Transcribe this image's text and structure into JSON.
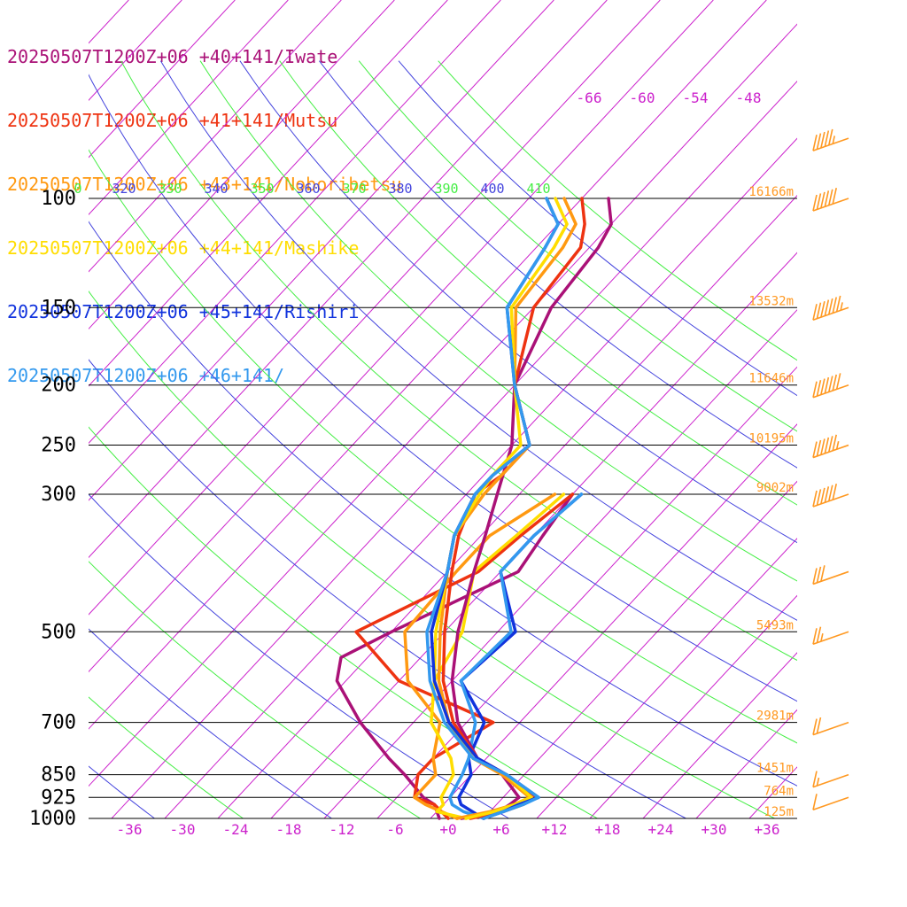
{
  "chart_data": {
    "type": "line",
    "title": "",
    "xlabel": "",
    "ylabel": "",
    "skew_t": true,
    "pressure_axis": "log",
    "xlim": [
      -40,
      39
    ],
    "ylim": [
      1000,
      100
    ],
    "x_ticks": [
      -36,
      -30,
      -24,
      -18,
      -12,
      -6,
      0,
      6,
      12,
      18,
      24,
      30,
      36
    ],
    "x_tick_labels": [
      "-36",
      "-30",
      "-24",
      "-18",
      "-12",
      "-6",
      "+0",
      "+6",
      "+12",
      "+18",
      "+24",
      "+30",
      "+36"
    ],
    "pressure_levels": [
      100,
      150,
      200,
      250,
      300,
      500,
      700,
      850,
      925,
      1000
    ],
    "pressure_labels": [
      "100",
      "150",
      "200",
      "250",
      "300",
      "500",
      "700",
      "850",
      "925",
      "1000"
    ],
    "height_labels": [
      {
        "p": 100,
        "text": "16166m"
      },
      {
        "p": 150,
        "text": "13532m"
      },
      {
        "p": 200,
        "text": "11646m"
      },
      {
        "p": 250,
        "text": "10195m"
      },
      {
        "p": 300,
        "text": "9002m"
      },
      {
        "p": 500,
        "text": "5493m"
      },
      {
        "p": 700,
        "text": "2981m"
      },
      {
        "p": 850,
        "text": "1451m"
      },
      {
        "p": 925,
        "text": "764m"
      },
      {
        "p": 1000,
        "text": "125m"
      }
    ],
    "theta_labels": [
      {
        "text": "0",
        "color": "#44ee44"
      },
      {
        "text": "320",
        "color": "#4444dd"
      },
      {
        "text": "330",
        "color": "#44ee44"
      },
      {
        "text": "340",
        "color": "#4444dd"
      },
      {
        "text": "350",
        "color": "#44ee44"
      },
      {
        "text": "360",
        "color": "#4444dd"
      },
      {
        "text": "370",
        "color": "#44ee44"
      },
      {
        "text": "380",
        "color": "#4444dd"
      },
      {
        "text": "390",
        "color": "#44ee44"
      },
      {
        "text": "400",
        "color": "#4444dd"
      },
      {
        "text": "410",
        "color": "#44ee44"
      }
    ],
    "upper_temp_labels": [
      "-66",
      "-60",
      "-54",
      "-48"
    ],
    "series": [
      {
        "name": "20250507T1200Z+06 +40+141/Iwate",
        "color": "#aa1177",
        "points": [
          [
            1000,
            1.5
          ],
          [
            975,
            5
          ],
          [
            950,
            5.5
          ],
          [
            925,
            5.8
          ],
          [
            850,
            1.5
          ],
          [
            800,
            -3
          ],
          [
            700,
            -9
          ],
          [
            600,
            -14
          ],
          [
            500,
            -18.5
          ],
          [
            400,
            -23
          ],
          [
            350,
            -25.5
          ],
          [
            300,
            -28.5
          ],
          [
            250,
            -32
          ],
          [
            200,
            -38
          ],
          [
            150,
            -42
          ],
          [
            120,
            -43
          ],
          [
            110,
            -44
          ],
          [
            100,
            -47
          ]
        ]
      },
      {
        "name": "20250507T1200Z+06 +41+141/Mutsu",
        "color": "#ee3311",
        "points": [
          [
            1000,
            2.5
          ],
          [
            975,
            5.5
          ],
          [
            950,
            7
          ],
          [
            925,
            7.8
          ],
          [
            850,
            2
          ],
          [
            800,
            -3
          ],
          [
            700,
            -9.5
          ],
          [
            600,
            -15
          ],
          [
            500,
            -20
          ],
          [
            400,
            -25.5
          ],
          [
            350,
            -28.5
          ],
          [
            300,
            -31
          ],
          [
            280,
            -30
          ],
          [
            250,
            -30
          ],
          [
            200,
            -38
          ],
          [
            150,
            -44
          ],
          [
            120,
            -45
          ],
          [
            110,
            -47
          ],
          [
            100,
            -50
          ]
        ]
      },
      {
        "name": "20250507T1200Z+06 +43+141/Noboribetsu",
        "color": "#ff9911",
        "points": [
          [
            1000,
            1
          ],
          [
            975,
            4
          ],
          [
            950,
            6
          ],
          [
            925,
            7
          ],
          [
            850,
            1.5
          ],
          [
            800,
            -3.5
          ],
          [
            700,
            -10
          ],
          [
            600,
            -15.5
          ],
          [
            500,
            -20.5
          ],
          [
            400,
            -26
          ],
          [
            350,
            -29
          ],
          [
            300,
            -30
          ],
          [
            280,
            -30
          ],
          [
            250,
            -30
          ],
          [
            200,
            -38
          ],
          [
            150,
            -46
          ],
          [
            120,
            -47
          ],
          [
            110,
            -48
          ],
          [
            100,
            -52
          ]
        ]
      },
      {
        "name": "20250507T1200Z+06 +44+141/Mashike",
        "color": "#ffdd00",
        "points": [
          [
            1000,
            2
          ],
          [
            975,
            4.5
          ],
          [
            950,
            6
          ],
          [
            925,
            7.2
          ],
          [
            850,
            2
          ],
          [
            800,
            -3.5
          ],
          [
            700,
            -10
          ],
          [
            600,
            -16
          ],
          [
            500,
            -21
          ],
          [
            400,
            -26
          ],
          [
            350,
            -29
          ],
          [
            300,
            -30.5
          ],
          [
            280,
            -31
          ],
          [
            250,
            -31
          ],
          [
            200,
            -38
          ],
          [
            150,
            -46.5
          ],
          [
            120,
            -48
          ],
          [
            110,
            -49
          ],
          [
            100,
            -53
          ]
        ]
      },
      {
        "name": "20250507T1200Z+06 +45+141/Rishiri",
        "color": "#1133dd",
        "points": [
          [
            1000,
            4
          ],
          [
            975,
            5.5
          ],
          [
            950,
            6.5
          ],
          [
            925,
            8
          ],
          [
            850,
            2
          ],
          [
            800,
            -3
          ],
          [
            700,
            -10
          ],
          [
            600,
            -16
          ],
          [
            500,
            -21.5
          ],
          [
            400,
            -26
          ],
          [
            350,
            -29
          ],
          [
            300,
            -31
          ],
          [
            280,
            -31
          ],
          [
            250,
            -30
          ],
          [
            200,
            -38
          ],
          [
            150,
            -47
          ],
          [
            120,
            -49
          ],
          [
            110,
            -50
          ],
          [
            100,
            -54
          ]
        ]
      },
      {
        "name": "20250507T1200Z+06 +46+141/",
        "color": "#3399ee",
        "points": [
          [
            1000,
            4
          ],
          [
            975,
            5.5
          ],
          [
            950,
            7
          ],
          [
            925,
            8
          ],
          [
            850,
            2
          ],
          [
            800,
            -3.5
          ],
          [
            700,
            -10.5
          ],
          [
            600,
            -16.5
          ],
          [
            500,
            -22
          ],
          [
            400,
            -26
          ],
          [
            350,
            -29
          ],
          [
            300,
            -31
          ],
          [
            280,
            -31
          ],
          [
            250,
            -30
          ],
          [
            200,
            -38
          ],
          [
            150,
            -47
          ],
          [
            120,
            -49
          ],
          [
            110,
            -50
          ],
          [
            100,
            -54
          ]
        ]
      }
    ],
    "dewpoint_series": [
      {
        "name": "20250507T1200Z+06 +40+141/Iwate",
        "color": "#aa1177",
        "points": [
          [
            1000,
            -1
          ],
          [
            950,
            -3
          ],
          [
            925,
            -5
          ],
          [
            850,
            -9.5
          ],
          [
            800,
            -13
          ],
          [
            700,
            -20
          ],
          [
            600,
            -27
          ],
          [
            550,
            -29
          ],
          [
            500,
            -26
          ],
          [
            400,
            -18
          ],
          [
            350,
            -19
          ],
          [
            300,
            -20
          ]
        ]
      },
      {
        "name": "20250507T1200Z+06 +41+141/Mutsu",
        "color": "#ee3311",
        "points": [
          [
            1000,
            0
          ],
          [
            950,
            -3
          ],
          [
            925,
            -6
          ],
          [
            850,
            -8
          ],
          [
            800,
            -8
          ],
          [
            700,
            -5
          ],
          [
            600,
            -20
          ],
          [
            500,
            -30
          ],
          [
            400,
            -22.5
          ],
          [
            350,
            -21.5
          ],
          [
            300,
            -20
          ]
        ]
      },
      {
        "name": "20250507T1200Z+06 +43+141/Noboribetsu",
        "color": "#ff9911",
        "points": [
          [
            1000,
            1
          ],
          [
            950,
            -4
          ],
          [
            925,
            -6
          ],
          [
            850,
            -6
          ],
          [
            800,
            -8
          ],
          [
            700,
            -11
          ],
          [
            600,
            -19
          ],
          [
            500,
            -24.5
          ],
          [
            400,
            -25
          ],
          [
            350,
            -25
          ],
          [
            300,
            -22
          ]
        ]
      },
      {
        "name": "20250507T1200Z+06 +44+141/Mashike",
        "color": "#ffdd00",
        "points": [
          [
            1000,
            2
          ],
          [
            975,
            -2
          ],
          [
            950,
            -2
          ],
          [
            925,
            -3
          ],
          [
            850,
            -4
          ],
          [
            800,
            -6
          ],
          [
            700,
            -12
          ],
          [
            600,
            -16
          ],
          [
            500,
            -18
          ],
          [
            400,
            -23
          ],
          [
            350,
            -22
          ],
          [
            300,
            -21
          ]
        ]
      },
      {
        "name": "20250507T1200Z+06 +45+141/Rishiri",
        "color": "#1133dd",
        "points": [
          [
            1000,
            4
          ],
          [
            975,
            2
          ],
          [
            950,
            0
          ],
          [
            925,
            -1
          ],
          [
            850,
            -2
          ],
          [
            800,
            -4
          ],
          [
            700,
            -6
          ],
          [
            600,
            -13
          ],
          [
            500,
            -12
          ],
          [
            400,
            -20
          ],
          [
            350,
            -20
          ],
          [
            300,
            -19
          ]
        ]
      },
      {
        "name": "20250507T1200Z+06 +46+141/",
        "color": "#3399ee",
        "points": [
          [
            1000,
            4
          ],
          [
            975,
            1
          ],
          [
            950,
            -1
          ],
          [
            925,
            -2
          ],
          [
            850,
            -3
          ],
          [
            800,
            -4
          ],
          [
            700,
            -7
          ],
          [
            600,
            -13
          ],
          [
            500,
            -12.5
          ],
          [
            400,
            -20
          ],
          [
            350,
            -20
          ],
          [
            300,
            -19
          ]
        ]
      }
    ],
    "wind_barbs": [
      {
        "p": 80,
        "knots": 55
      },
      {
        "p": 100,
        "knots": 60
      },
      {
        "p": 150,
        "knots": 75
      },
      {
        "p": 200,
        "knots": 70
      },
      {
        "p": 250,
        "knots": 65
      },
      {
        "p": 300,
        "knots": 60
      },
      {
        "p": 400,
        "knots": 30
      },
      {
        "p": 500,
        "knots": 25
      },
      {
        "p": 700,
        "knots": 20
      },
      {
        "p": 850,
        "knots": 15
      },
      {
        "p": 925,
        "knots": 10
      }
    ],
    "colors": {
      "isobar": "#000000",
      "isotherm": "#cc22cc",
      "theta_blue": "#4444dd",
      "theta_green": "#44ee44",
      "height_label": "#ff9922",
      "wind_barb": "#ff9922"
    }
  }
}
